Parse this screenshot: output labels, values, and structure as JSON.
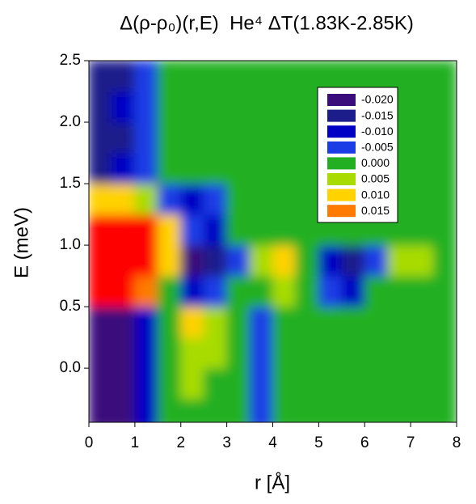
{
  "chart_data": {
    "type": "contour",
    "title": "Δ(ρ-ρ₀)(r,E)  He⁴ ΔT(1.83K-2.85K)",
    "x_label": "r [Å]",
    "y_label": "E (meV)",
    "xlim": [
      0,
      8
    ],
    "xticks": [
      0,
      1,
      2,
      3,
      4,
      5,
      6,
      7,
      8
    ],
    "ylim": [
      -0.44,
      2.5
    ],
    "yticks": [
      {
        "value": 0,
        "label": "0.0"
      },
      0.5,
      {
        "value": 1,
        "label": "1.0"
      },
      1.5,
      {
        "value": 2,
        "label": "2.0"
      },
      2.5
    ],
    "x": [
      0.25,
      0.75,
      1.25,
      1.75,
      2.25,
      2.75,
      3.25,
      3.75,
      4.25,
      4.75,
      5.25,
      5.75,
      6.25,
      6.75,
      7.25,
      7.75
    ],
    "y": [
      -0.375,
      -0.125,
      0.125,
      0.375,
      0.625,
      0.875,
      1.125,
      1.375,
      1.625,
      1.875,
      2.125,
      2.375
    ],
    "z": [
      [
        -0.022,
        -0.022,
        -0.008,
        0.001,
        0.004,
        0.003,
        0.001,
        -0.001,
        0.001,
        0.001,
        0.003,
        0.001,
        0.001,
        0.003,
        0.001,
        0.001
      ],
      [
        -0.022,
        -0.022,
        -0.008,
        0.002,
        0.006,
        0.004,
        0.001,
        -0.002,
        0.001,
        0.001,
        0.004,
        0.001,
        0.001,
        0.004,
        0.001,
        0.001
      ],
      [
        -0.022,
        -0.022,
        -0.007,
        0.002,
        0.008,
        0.006,
        0.001,
        -0.003,
        0.001,
        0.002,
        0.004,
        0.001,
        0.001,
        0.004,
        0.002,
        0.001
      ],
      [
        -0.022,
        -0.021,
        -0.006,
        0.002,
        0.011,
        0.007,
        0.002,
        -0.002,
        0.001,
        0.002,
        0.004,
        0.001,
        0.001,
        0.003,
        0.002,
        0.001
      ],
      [
        0.025,
        0.025,
        0.015,
        0.003,
        -0.008,
        -0.004,
        0.001,
        0.004,
        0.006,
        0.002,
        -0.003,
        -0.006,
        0.001,
        0.004,
        0.002,
        0.001
      ],
      [
        0.03,
        0.03,
        0.025,
        0.012,
        -0.016,
        -0.011,
        -0.002,
        0.008,
        0.011,
        0.004,
        -0.006,
        -0.011,
        -0.002,
        0.005,
        0.007,
        0.002
      ],
      [
        0.03,
        0.03,
        0.025,
        0.01,
        -0.004,
        -0.006,
        0.001,
        0.003,
        0.002,
        0.001,
        0.001,
        0.001,
        0.001,
        0.002,
        0.002,
        0.001
      ],
      [
        0.012,
        0.012,
        0.008,
        -0.002,
        -0.007,
        -0.005,
        0.002,
        0.002,
        0.001,
        0.001,
        0.001,
        0.001,
        0.001,
        0.003,
        0.001,
        0.001
      ],
      [
        -0.012,
        -0.009,
        -0.004,
        0.001,
        0.002,
        0.002,
        0.004,
        0.002,
        0.001,
        0.004,
        0.002,
        0.001,
        0.001,
        0.001,
        0.001,
        0.001
      ],
      [
        -0.014,
        -0.011,
        -0.005,
        0.001,
        0.002,
        0.002,
        0.004,
        0.002,
        0.001,
        0.004,
        0.002,
        0.001,
        0.001,
        0.001,
        0.001,
        0.001
      ],
      [
        -0.013,
        -0.01,
        -0.004,
        0.001,
        0.001,
        0.002,
        0.004,
        0.002,
        0.001,
        0.003,
        0.002,
        0.001,
        0.001,
        0.001,
        0.001,
        0.001
      ],
      [
        -0.014,
        -0.012,
        -0.005,
        0.001,
        0.001,
        0.002,
        0.004,
        0.002,
        0.001,
        0.002,
        0.002,
        0.001,
        0.001,
        0.001,
        0.001,
        0.001
      ]
    ],
    "levels": [
      {
        "value": -0.02,
        "label": "-0.020",
        "color": "#3b0c7b"
      },
      {
        "value": -0.015,
        "label": "-0.015",
        "color": "#1c1c8a"
      },
      {
        "value": -0.01,
        "label": "-0.010",
        "color": "#0000c4"
      },
      {
        "value": -0.005,
        "label": "-0.005",
        "color": "#1a3de6"
      },
      {
        "value": 0,
        "label": "0.000",
        "color": "#22b022"
      },
      {
        "value": 0.005,
        "label": "0.005",
        "color": "#a8dc00"
      },
      {
        "value": 0.01,
        "label": "0.010",
        "color": "#ffd200"
      },
      {
        "value": 0.015,
        "label": "0.015",
        "color": "#ff7a00"
      }
    ],
    "color_above": "#ff0000"
  }
}
